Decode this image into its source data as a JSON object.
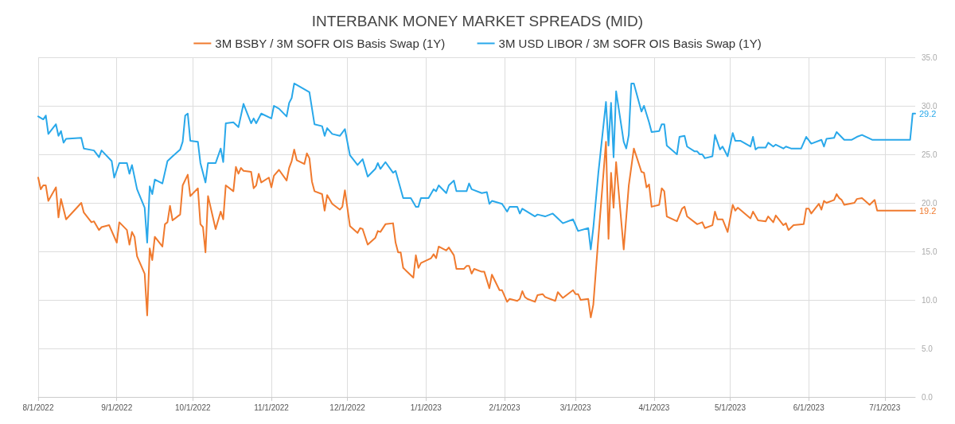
{
  "chart_data": {
    "type": "line",
    "title": "INTERBANK MONEY MARKET SPREADS (MID)",
    "legend": "top",
    "grid": true,
    "line_style": "solid",
    "marker": "none",
    "xlim": [
      "2022-08-01",
      "2023-07-13"
    ],
    "xticks": [
      {
        "value": "2022-08-01",
        "label": "8/1/2022"
      },
      {
        "value": "2022-09-01",
        "label": "9/1/2022"
      },
      {
        "value": "2022-10-01",
        "label": "10/1/2022"
      },
      {
        "value": "2022-11-01",
        "label": "11/1/2022"
      },
      {
        "value": "2022-12-01",
        "label": "12/1/2022"
      },
      {
        "value": "2023-01-01",
        "label": "1/1/2023"
      },
      {
        "value": "2023-02-01",
        "label": "2/1/2023"
      },
      {
        "value": "2023-03-01",
        "label": "3/1/2023"
      },
      {
        "value": "2023-04-01",
        "label": "4/1/2023"
      },
      {
        "value": "2023-05-01",
        "label": "5/1/2023"
      },
      {
        "value": "2023-06-01",
        "label": "6/1/2023"
      },
      {
        "value": "2023-07-01",
        "label": "7/1/2023"
      }
    ],
    "ylim": [
      0,
      35
    ],
    "yticks": [
      {
        "value": 0,
        "label": "0.0"
      },
      {
        "value": 5,
        "label": "5.0"
      },
      {
        "value": 10,
        "label": "10.0"
      },
      {
        "value": 15,
        "label": "15.0"
      },
      {
        "value": 20,
        "label": "20.0"
      },
      {
        "value": 25,
        "label": "25.0"
      },
      {
        "value": 30,
        "label": "30.0"
      },
      {
        "value": 35,
        "label": "35.0"
      }
    ],
    "annotations": [
      {
        "text": "29.2",
        "x": "2023-07-13",
        "y": 29.2
      },
      {
        "text": "19.2",
        "x": "2023-07-13",
        "y": 19.2
      }
    ],
    "series": [
      {
        "name": "3M BSBY / 3M SOFR OIS Basis Swap (1Y)",
        "color": "#f07a2e",
        "x": [
          "2022-08-01",
          "2022-08-02",
          "2022-08-03",
          "2022-08-04",
          "2022-08-05",
          "2022-08-08",
          "2022-08-09",
          "2022-08-10",
          "2022-08-12",
          "2022-08-18",
          "2022-08-19",
          "2022-08-22",
          "2022-08-23",
          "2022-08-25",
          "2022-08-26",
          "2022-08-29",
          "2022-09-01",
          "2022-09-02",
          "2022-09-05",
          "2022-09-06",
          "2022-09-07",
          "2022-09-08",
          "2022-09-09",
          "2022-09-12",
          "2022-09-13",
          "2022-09-14",
          "2022-09-15",
          "2022-09-16",
          "2022-09-19",
          "2022-09-20",
          "2022-09-21",
          "2022-09-22",
          "2022-09-23",
          "2022-09-26",
          "2022-09-27",
          "2022-09-29",
          "2022-09-30",
          "2022-10-03",
          "2022-10-04",
          "2022-10-05",
          "2022-10-06",
          "2022-10-07",
          "2022-10-10",
          "2022-10-12",
          "2022-10-13",
          "2022-10-14",
          "2022-10-17",
          "2022-10-18",
          "2022-10-19",
          "2022-10-20",
          "2022-10-21",
          "2022-10-24",
          "2022-10-25",
          "2022-10-26",
          "2022-10-27",
          "2022-10-28",
          "2022-10-31",
          "2022-11-01",
          "2022-11-02",
          "2022-11-04",
          "2022-11-07",
          "2022-11-08",
          "2022-11-09",
          "2022-11-10",
          "2022-11-11",
          "2022-11-14",
          "2022-11-15",
          "2022-11-16",
          "2022-11-17",
          "2022-11-18",
          "2022-11-21",
          "2022-11-22",
          "2022-11-23",
          "2022-11-25",
          "2022-11-28",
          "2022-11-29",
          "2022-11-30",
          "2022-12-02",
          "2022-12-05",
          "2022-12-06",
          "2022-12-07",
          "2022-12-09",
          "2022-12-12",
          "2022-12-13",
          "2022-12-14",
          "2022-12-16",
          "2022-12-19",
          "2022-12-20",
          "2022-12-21",
          "2022-12-22",
          "2022-12-23",
          "2022-12-27",
          "2022-12-28",
          "2022-12-29",
          "2022-12-30",
          "2023-01-03",
          "2023-01-04",
          "2023-01-05",
          "2023-01-06",
          "2023-01-09",
          "2023-01-10",
          "2023-01-12",
          "2023-01-13",
          "2023-01-16",
          "2023-01-17",
          "2023-01-18",
          "2023-01-19",
          "2023-01-20",
          "2023-01-23",
          "2023-01-24",
          "2023-01-26",
          "2023-01-27",
          "2023-01-30",
          "2023-01-31",
          "2023-02-02",
          "2023-02-03",
          "2023-02-06",
          "2023-02-07",
          "2023-02-08",
          "2023-02-09",
          "2023-02-10",
          "2023-02-13",
          "2023-02-14",
          "2023-02-16",
          "2023-02-17",
          "2023-02-21",
          "2023-02-22",
          "2023-02-24",
          "2023-02-28",
          "2023-03-01",
          "2023-03-02",
          "2023-03-03",
          "2023-03-06",
          "2023-03-07",
          "2023-03-08",
          "2023-03-10",
          "2023-03-13",
          "2023-03-14",
          "2023-03-15",
          "2023-03-16",
          "2023-03-17",
          "2023-03-20",
          "2023-03-22",
          "2023-03-24",
          "2023-03-27",
          "2023-03-28",
          "2023-03-29",
          "2023-03-30",
          "2023-03-31",
          "2023-04-03",
          "2023-04-04",
          "2023-04-05",
          "2023-04-06",
          "2023-04-10",
          "2023-04-12",
          "2023-04-13",
          "2023-04-14",
          "2023-04-18",
          "2023-04-20",
          "2023-04-21",
          "2023-04-24",
          "2023-04-25",
          "2023-04-26",
          "2023-04-28",
          "2023-04-30",
          "2023-05-02",
          "2023-05-03",
          "2023-05-04",
          "2023-05-09",
          "2023-05-10",
          "2023-05-12",
          "2023-05-15",
          "2023-05-16",
          "2023-05-18",
          "2023-05-19",
          "2023-05-22",
          "2023-05-23",
          "2023-05-24",
          "2023-05-26",
          "2023-05-30",
          "2023-05-31",
          "2023-06-01",
          "2023-06-02",
          "2023-06-05",
          "2023-06-06",
          "2023-06-07",
          "2023-06-08",
          "2023-06-11",
          "2023-06-12",
          "2023-06-13",
          "2023-06-14",
          "2023-06-15",
          "2023-06-19",
          "2023-06-20",
          "2023-06-22",
          "2023-06-25",
          "2023-06-27",
          "2023-06-28",
          "2023-07-11",
          "2023-07-13"
        ],
        "values": [
          22.6,
          21.4,
          21.8,
          21.8,
          20.2,
          21.6,
          18.5,
          20.4,
          18.3,
          20.0,
          19.0,
          18.0,
          18.1,
          17.2,
          17.5,
          17.7,
          15.9,
          18.0,
          17.2,
          15.7,
          17.0,
          16.5,
          14.5,
          12.7,
          8.4,
          15.3,
          14.1,
          16.5,
          15.5,
          17.8,
          18.0,
          19.7,
          18.2,
          18.8,
          21.8,
          22.9,
          20.7,
          21.5,
          17.8,
          17.5,
          14.9,
          20.7,
          17.3,
          19.1,
          18.3,
          21.8,
          21.2,
          23.7,
          23.0,
          23.6,
          23.3,
          23.2,
          21.5,
          21.8,
          23.0,
          22.1,
          22.6,
          21.6,
          22.8,
          23.4,
          22.3,
          23.6,
          24.3,
          25.5,
          24.4,
          24.0,
          25.1,
          24.6,
          22.2,
          21.2,
          20.9,
          19.2,
          20.8,
          19.9,
          19.3,
          19.6,
          21.3,
          17.6,
          16.9,
          17.4,
          17.3,
          15.7,
          16.4,
          17.1,
          17.0,
          17.8,
          17.9,
          15.9,
          14.9,
          14.9,
          13.3,
          12.3,
          14.6,
          13.3,
          13.8,
          14.3,
          14.7,
          14.3,
          15.5,
          15.1,
          15.4,
          14.6,
          13.2,
          13.2,
          13.5,
          13.5,
          12.7,
          13.2,
          12.9,
          12.9,
          11.2,
          12.6,
          11.0,
          11.0,
          9.8,
          10.1,
          9.9,
          10.1,
          10.9,
          10.3,
          10.1,
          9.8,
          10.5,
          10.6,
          10.3,
          9.9,
          10.8,
          10.2,
          11.0,
          10.6,
          10.6,
          10.0,
          10.1,
          8.2,
          9.5,
          16.4,
          26.3,
          16.3,
          23.1,
          19.5,
          24.2,
          15.2,
          21.8,
          25.6,
          23.2,
          23.1,
          21.6,
          21.9,
          19.6,
          19.8,
          21.5,
          21.2,
          18.6,
          18.1,
          19.4,
          19.6,
          18.6,
          17.8,
          18.0,
          17.4,
          17.7,
          19.1,
          18.3,
          18.3,
          17.0,
          19.8,
          19.2,
          19.5,
          18.4,
          19.1,
          18.2,
          18.1,
          18.6,
          18.0,
          18.7,
          17.7,
          17.9,
          17.2,
          17.7,
          17.8,
          19.4,
          19.4,
          18.9,
          19.9,
          19.3,
          20.2,
          20.0,
          20.3,
          20.9,
          20.5,
          20.3,
          19.8,
          20.0,
          20.4,
          20.5,
          19.8,
          20.3,
          19.2,
          19.2,
          19.2
        ]
      },
      {
        "name": "3M USD LIBOR / 3M SOFR OIS Basis Swap (1Y)",
        "color": "#29a8ea",
        "x": [
          "2022-08-01",
          "2022-08-03",
          "2022-08-04",
          "2022-08-05",
          "2022-08-08",
          "2022-08-09",
          "2022-08-10",
          "2022-08-11",
          "2022-08-12",
          "2022-08-18",
          "2022-08-19",
          "2022-08-23",
          "2022-08-25",
          "2022-08-26",
          "2022-08-30",
          "2022-08-31",
          "2022-09-02",
          "2022-09-05",
          "2022-09-06",
          "2022-09-07",
          "2022-09-09",
          "2022-09-12",
          "2022-09-13",
          "2022-09-14",
          "2022-09-15",
          "2022-09-16",
          "2022-09-19",
          "2022-09-21",
          "2022-09-23",
          "2022-09-26",
          "2022-09-27",
          "2022-09-28",
          "2022-09-29",
          "2022-09-30",
          "2022-10-03",
          "2022-10-04",
          "2022-10-06",
          "2022-10-07",
          "2022-10-10",
          "2022-10-12",
          "2022-10-13",
          "2022-10-14",
          "2022-10-17",
          "2022-10-19",
          "2022-10-21",
          "2022-10-24",
          "2022-10-25",
          "2022-10-26",
          "2022-10-28",
          "2022-11-01",
          "2022-11-02",
          "2022-11-04",
          "2022-11-07",
          "2022-11-08",
          "2022-11-09",
          "2022-11-10",
          "2022-11-16",
          "2022-11-18",
          "2022-11-21",
          "2022-11-22",
          "2022-11-23",
          "2022-11-25",
          "2022-11-28",
          "2022-11-30",
          "2022-12-02",
          "2022-12-05",
          "2022-12-07",
          "2022-12-09",
          "2022-12-12",
          "2022-12-13",
          "2022-12-14",
          "2022-12-16",
          "2022-12-19",
          "2022-12-20",
          "2022-12-23",
          "2022-12-26",
          "2022-12-28",
          "2022-12-29",
          "2022-12-30",
          "2023-01-02",
          "2023-01-04",
          "2023-01-05",
          "2023-01-06",
          "2023-01-09",
          "2023-01-10",
          "2023-01-12",
          "2023-01-13",
          "2023-01-17",
          "2023-01-18",
          "2023-01-19",
          "2023-01-23",
          "2023-01-25",
          "2023-01-26",
          "2023-01-27",
          "2023-01-31",
          "2023-02-02",
          "2023-02-03",
          "2023-02-06",
          "2023-02-07",
          "2023-02-08",
          "2023-02-13",
          "2023-02-14",
          "2023-02-17",
          "2023-02-20",
          "2023-02-22",
          "2023-02-24",
          "2023-02-28",
          "2023-03-02",
          "2023-03-06",
          "2023-03-07",
          "2023-03-08",
          "2023-03-10",
          "2023-03-13",
          "2023-03-14",
          "2023-03-15",
          "2023-03-16",
          "2023-03-17",
          "2023-03-20",
          "2023-03-21",
          "2023-03-22",
          "2023-03-23",
          "2023-03-24",
          "2023-03-27",
          "2023-03-28",
          "2023-03-30",
          "2023-03-31",
          "2023-04-03",
          "2023-04-04",
          "2023-04-05",
          "2023-04-06",
          "2023-04-10",
          "2023-04-11",
          "2023-04-13",
          "2023-04-14",
          "2023-04-17",
          "2023-04-18",
          "2023-04-19",
          "2023-04-20",
          "2023-04-21",
          "2023-04-24",
          "2023-04-25",
          "2023-04-27",
          "2023-04-28",
          "2023-04-30",
          "2023-05-02",
          "2023-05-03",
          "2023-05-05",
          "2023-05-09",
          "2023-05-10",
          "2023-05-11",
          "2023-05-12",
          "2023-05-15",
          "2023-05-16",
          "2023-05-18",
          "2023-05-19",
          "2023-05-22",
          "2023-05-23",
          "2023-05-25",
          "2023-05-29",
          "2023-05-31",
          "2023-06-02",
          "2023-06-06",
          "2023-06-07",
          "2023-06-08",
          "2023-06-11",
          "2023-06-12",
          "2023-06-15",
          "2023-06-18",
          "2023-06-20",
          "2023-06-22",
          "2023-06-26",
          "2023-07-11",
          "2023-07-12",
          "2023-07-13"
        ],
        "values": [
          28.9,
          28.6,
          29.0,
          27.1,
          28.1,
          26.9,
          27.4,
          26.2,
          26.6,
          26.7,
          25.6,
          25.4,
          24.7,
          25.4,
          24.3,
          22.6,
          24.1,
          24.1,
          23.0,
          23.9,
          21.4,
          19.5,
          15.9,
          21.7,
          20.9,
          22.4,
          22.0,
          24.3,
          24.8,
          25.5,
          26.3,
          29.0,
          29.2,
          26.4,
          26.3,
          24.1,
          22.1,
          24.1,
          24.1,
          25.6,
          24.2,
          28.2,
          28.3,
          27.8,
          30.2,
          28.2,
          28.7,
          28.2,
          29.2,
          28.7,
          30.0,
          29.7,
          28.9,
          30.3,
          30.8,
          32.3,
          31.4,
          28.1,
          27.9,
          26.9,
          27.7,
          27.1,
          26.9,
          27.6,
          24.9,
          23.9,
          24.5,
          22.7,
          23.5,
          24.1,
          23.5,
          24.2,
          23.1,
          23.3,
          20.5,
          20.5,
          19.6,
          19.6,
          20.5,
          20.5,
          21.4,
          21.2,
          21.8,
          21.0,
          21.8,
          22.3,
          21.2,
          21.2,
          22.0,
          21.4,
          21.0,
          21.1,
          19.9,
          20.2,
          19.9,
          19.1,
          19.6,
          19.6,
          18.9,
          19.4,
          18.6,
          18.8,
          18.6,
          18.9,
          18.4,
          17.9,
          18.3,
          17.1,
          17.4,
          15.2,
          17.4,
          23.1,
          30.4,
          25.9,
          30.3,
          24.7,
          31.5,
          26.3,
          25.6,
          27.0,
          32.3,
          32.3,
          29.4,
          30.0,
          28.3,
          27.3,
          27.4,
          28.1,
          28.1,
          25.9,
          25.0,
          26.8,
          26.9,
          25.8,
          25.3,
          25.3,
          25.0,
          25.0,
          24.6,
          24.8,
          27.0,
          25.5,
          25.8,
          24.8,
          27.2,
          26.4,
          26.4,
          25.8,
          26.8,
          25.5,
          25.7,
          25.7,
          26.2,
          25.8,
          26.0,
          25.6,
          25.8,
          25.6,
          25.6,
          26.8,
          26.1,
          26.5,
          25.8,
          26.6,
          26.7,
          27.3,
          26.5,
          26.5,
          26.8,
          27.0,
          26.5,
          26.5,
          29.2,
          29.2
        ]
      }
    ]
  }
}
